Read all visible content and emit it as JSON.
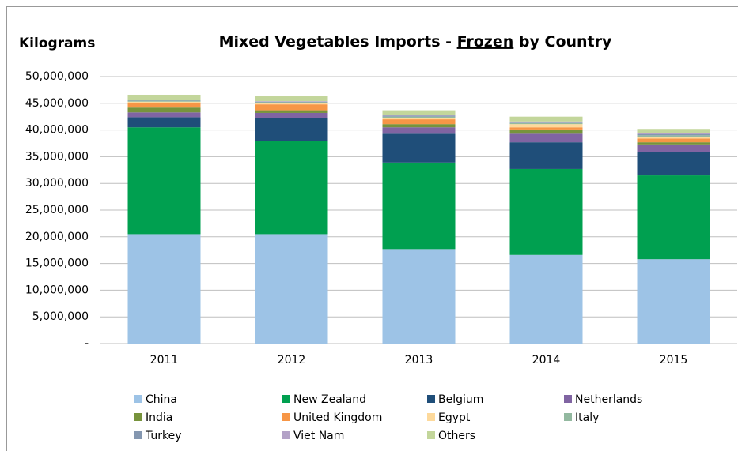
{
  "chart_data": {
    "type": "stacked_bar",
    "title": [
      "Mixed Vegetables Imports - ",
      "Frozen",
      " by Country"
    ],
    "y_label": "Kilograms",
    "categories": [
      "2011",
      "2012",
      "2013",
      "2014",
      "2015"
    ],
    "series": [
      {
        "name": "China",
        "color": "#9dc3e6",
        "values": [
          20500000,
          20500000,
          17700000,
          16600000,
          15800000
        ]
      },
      {
        "name": "New Zealand",
        "color": "#00a050",
        "values": [
          20000000,
          17500000,
          16200000,
          16100000,
          15700000
        ]
      },
      {
        "name": "Belgium",
        "color": "#1f4e79",
        "values": [
          1900000,
          4200000,
          5400000,
          5000000,
          4400000
        ]
      },
      {
        "name": "Netherlands",
        "color": "#8064a2",
        "values": [
          900000,
          1000000,
          1200000,
          1600000,
          1400000
        ]
      },
      {
        "name": "India",
        "color": "#77933c",
        "values": [
          900000,
          500000,
          600000,
          800000,
          400000
        ]
      },
      {
        "name": "United Kingdom",
        "color": "#f79646",
        "values": [
          800000,
          1100000,
          900000,
          400000,
          700000
        ]
      },
      {
        "name": "Egypt",
        "color": "#fdd99b",
        "values": [
          300000,
          200000,
          200000,
          600000,
          300000
        ]
      },
      {
        "name": "Italy",
        "color": "#93b9a0",
        "values": [
          200000,
          200000,
          300000,
          200000,
          300000
        ]
      },
      {
        "name": "Turkey",
        "color": "#8497b0",
        "values": [
          100000,
          100000,
          200000,
          100000,
          200000
        ]
      },
      {
        "name": "Viet Nam",
        "color": "#b3a2c7",
        "values": [
          100000,
          100000,
          100000,
          200000,
          200000
        ]
      },
      {
        "name": "Others",
        "color": "#c3d69b",
        "values": [
          900000,
          900000,
          900000,
          900000,
          800000
        ]
      }
    ],
    "ylim": [
      0,
      50000000
    ],
    "yticks": [
      {
        "value": 0,
        "label": "-"
      },
      {
        "value": 5000000,
        "label": "5,000,000"
      },
      {
        "value": 10000000,
        "label": "10,000,000"
      },
      {
        "value": 15000000,
        "label": "15,000,000"
      },
      {
        "value": 20000000,
        "label": "20,000,000"
      },
      {
        "value": 25000000,
        "label": "25,000,000"
      },
      {
        "value": 30000000,
        "label": "30,000,000"
      },
      {
        "value": 35000000,
        "label": "35,000,000"
      },
      {
        "value": 40000000,
        "label": "40,000,000"
      },
      {
        "value": 45000000,
        "label": "45,000,000"
      },
      {
        "value": 50000000,
        "label": "50,000,000"
      }
    ],
    "grid": true,
    "legend": "bottom"
  }
}
